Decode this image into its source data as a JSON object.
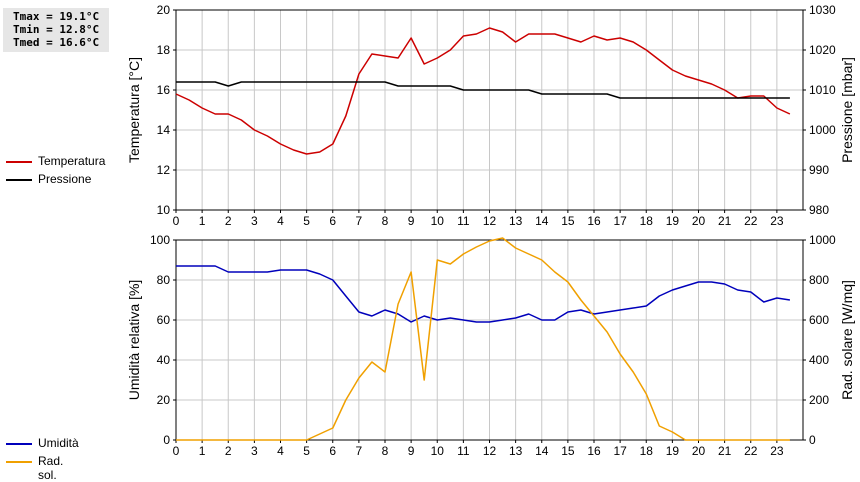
{
  "stats": {
    "tmax": "Tmax = 19.1°C",
    "tmin": "Tmin = 12.8°C",
    "tmed": "Tmed = 16.6°C"
  },
  "legend_top": [
    {
      "label": "Temperatura",
      "color": "#cc0000"
    },
    {
      "label": "Pressione",
      "color": "#000000"
    }
  ],
  "legend_bottom": [
    {
      "label": "Umidità",
      "color": "#0000bb"
    },
    {
      "label": "Rad. sol.",
      "color": "#f0a000"
    }
  ],
  "chart_data": [
    {
      "type": "line",
      "x_ticks": [
        "0",
        "1",
        "2",
        "3",
        "4",
        "5",
        "6",
        "7",
        "8",
        "9",
        "10",
        "11",
        "12",
        "13",
        "14",
        "15",
        "16",
        "17",
        "18",
        "19",
        "20",
        "21",
        "22",
        "23"
      ],
      "xlim": [
        0,
        24
      ],
      "ylabel": "Temperatura [°C]",
      "ylim": [
        10,
        20
      ],
      "y_ticks": [
        "10",
        "12",
        "14",
        "16",
        "18",
        "20"
      ],
      "y2label": "Pressione [mbar]",
      "y2lim": [
        980,
        1030
      ],
      "y2_ticks": [
        "980",
        "990",
        "1000",
        "1010",
        "1020",
        "1030"
      ],
      "grid": true,
      "series": [
        {
          "name": "Temperatura",
          "axis": "left",
          "color": "#cc0000",
          "x": [
            0,
            0.5,
            1,
            1.5,
            2,
            2.5,
            3,
            3.5,
            4,
            4.5,
            5,
            5.5,
            6,
            6.5,
            7,
            7.5,
            8,
            8.5,
            9,
            9.5,
            10,
            10.5,
            11,
            11.5,
            12,
            12.5,
            13,
            13.5,
            14,
            14.5,
            15,
            15.5,
            16,
            16.5,
            17,
            17.5,
            18,
            18.5,
            19,
            19.5,
            20,
            20.5,
            21,
            21.5,
            22,
            22.5,
            23,
            23.5
          ],
          "values": [
            15.8,
            15.5,
            15.1,
            14.8,
            14.8,
            14.5,
            14.0,
            13.7,
            13.3,
            13.0,
            12.8,
            12.9,
            13.3,
            14.7,
            16.8,
            17.8,
            17.7,
            17.6,
            18.6,
            17.3,
            17.6,
            18.0,
            18.7,
            18.8,
            19.1,
            18.9,
            18.4,
            18.8,
            18.8,
            18.8,
            18.6,
            18.4,
            18.7,
            18.5,
            18.6,
            18.4,
            18.0,
            17.5,
            17.0,
            16.7,
            16.5,
            16.3,
            16.0,
            15.6,
            15.7,
            15.7,
            15.1,
            14.8
          ]
        },
        {
          "name": "Pressione",
          "axis": "right",
          "color": "#000000",
          "x": [
            0,
            1,
            1.5,
            2,
            2.5,
            3,
            4,
            5,
            6,
            7,
            7.5,
            8,
            8.5,
            9,
            10,
            10.5,
            11,
            12,
            13,
            13.5,
            14,
            15,
            16,
            16.5,
            17,
            18,
            19,
            20,
            21,
            22,
            23,
            23.5
          ],
          "values": [
            1012,
            1012,
            1012,
            1011,
            1012,
            1012,
            1012,
            1012,
            1012,
            1012,
            1012,
            1012,
            1011,
            1011,
            1011,
            1011,
            1010,
            1010,
            1010,
            1010,
            1009,
            1009,
            1009,
            1009,
            1008,
            1008,
            1008,
            1008,
            1008,
            1008,
            1008,
            1008
          ]
        }
      ]
    },
    {
      "type": "line",
      "x_ticks": [
        "0",
        "1",
        "2",
        "3",
        "4",
        "5",
        "6",
        "7",
        "8",
        "9",
        "10",
        "11",
        "12",
        "13",
        "14",
        "15",
        "16",
        "17",
        "18",
        "19",
        "20",
        "21",
        "22",
        "23"
      ],
      "xlim": [
        0,
        24
      ],
      "ylabel": "Umidità relativa [%]",
      "ylim": [
        0,
        100
      ],
      "y_ticks": [
        "0",
        "20",
        "40",
        "60",
        "80",
        "100"
      ],
      "y2label": "Rad. solare [W/mq]",
      "y2lim": [
        0,
        1000
      ],
      "y2_ticks": [
        "0",
        "200",
        "400",
        "600",
        "800",
        "1000"
      ],
      "grid": true,
      "series": [
        {
          "name": "Umidità",
          "axis": "left",
          "color": "#0000bb",
          "x": [
            0,
            0.5,
            1,
            1.5,
            2,
            2.5,
            3,
            3.5,
            4,
            4.5,
            5,
            5.5,
            6,
            6.5,
            7,
            7.5,
            8,
            8.5,
            9,
            9.5,
            10,
            10.5,
            11,
            11.5,
            12,
            12.5,
            13,
            13.5,
            14,
            14.5,
            15,
            15.5,
            16,
            16.5,
            17,
            17.5,
            18,
            18.5,
            19,
            19.5,
            20,
            20.5,
            21,
            21.5,
            22,
            22.5,
            23,
            23.5
          ],
          "values": [
            87,
            87,
            87,
            87,
            84,
            84,
            84,
            84,
            85,
            85,
            85,
            83,
            80,
            72,
            64,
            62,
            65,
            63,
            59,
            62,
            60,
            61,
            60,
            59,
            59,
            60,
            61,
            63,
            60,
            60,
            64,
            65,
            63,
            64,
            65,
            66,
            67,
            72,
            75,
            77,
            79,
            79,
            78,
            75,
            74,
            69,
            71,
            70
          ]
        },
        {
          "name": "Rad. sol.",
          "axis": "right",
          "color": "#f0a000",
          "x": [
            0,
            1,
            2,
            3,
            4,
            5,
            5.5,
            6,
            6.5,
            7,
            7.5,
            8,
            8.5,
            9,
            9.5,
            10,
            10.5,
            11,
            11.5,
            12,
            12.5,
            13,
            13.5,
            14,
            14.5,
            15,
            15.5,
            16,
            16.5,
            17,
            17.5,
            18,
            18.5,
            19,
            19.5,
            20,
            21,
            22,
            23,
            23.5
          ],
          "values": [
            0,
            0,
            0,
            0,
            0,
            0,
            30,
            60,
            200,
            310,
            390,
            340,
            680,
            840,
            300,
            900,
            880,
            930,
            965,
            995,
            1010,
            960,
            930,
            900,
            840,
            790,
            700,
            620,
            540,
            430,
            340,
            230,
            70,
            40,
            0,
            0,
            0,
            0,
            0,
            0
          ]
        }
      ]
    }
  ]
}
